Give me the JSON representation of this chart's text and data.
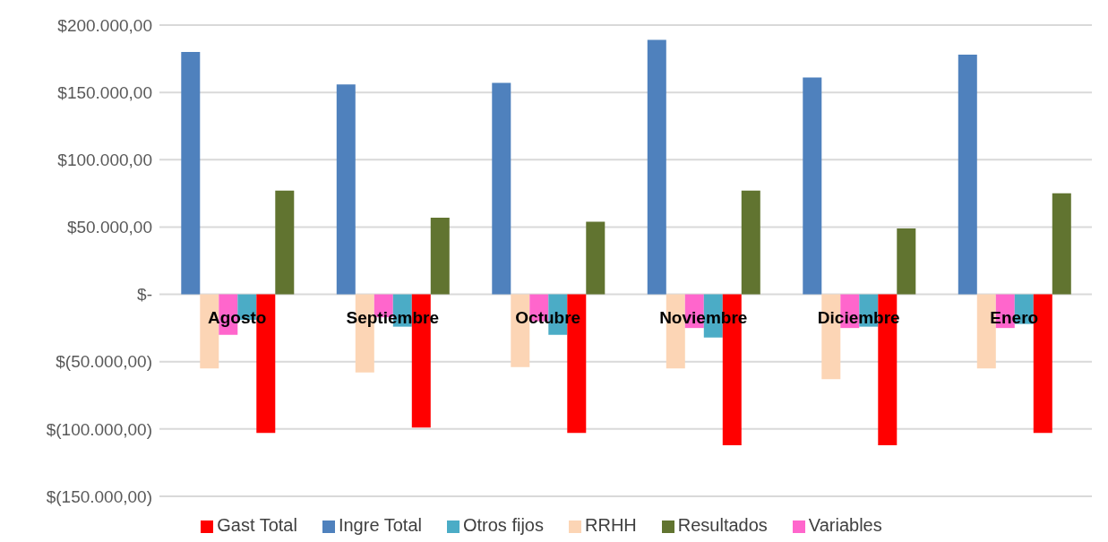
{
  "chart_data": {
    "type": "bar",
    "categories": [
      "Agosto",
      "Septiembre",
      "Octubre",
      "Noviembre",
      "Diciembre",
      "Enero"
    ],
    "series": [
      {
        "name": "Ingre Total",
        "color": "#4f81bd",
        "values": [
          180000,
          156000,
          157000,
          189000,
          161000,
          178000
        ]
      },
      {
        "name": "RRHH",
        "color": "#fcd5b5",
        "values": [
          -55000,
          -58000,
          -54000,
          -55000,
          -63000,
          -55000
        ]
      },
      {
        "name": "Variables",
        "color": "#ff66cc",
        "values": [
          -30000,
          -17000,
          -20000,
          -25000,
          -25000,
          -25000
        ]
      },
      {
        "name": "Otros fijos",
        "color": "#4bacc6",
        "values": [
          -19000,
          -24000,
          -30000,
          -32000,
          -24000,
          -22000
        ]
      },
      {
        "name": "Gast Total",
        "color": "#ff0000",
        "values": [
          -103000,
          -99000,
          -103000,
          -112000,
          -112000,
          -103000
        ]
      },
      {
        "name": "Resultados",
        "color": "#617430",
        "values": [
          77000,
          57000,
          54000,
          77000,
          49000,
          75000
        ]
      }
    ],
    "ylim": [
      -150000,
      200000
    ],
    "yticks": [
      {
        "value": 200000,
        "label": "$200.000,00"
      },
      {
        "value": 150000,
        "label": "$150.000,00"
      },
      {
        "value": 100000,
        "label": "$100.000,00"
      },
      {
        "value": 50000,
        "label": "$50.000,00"
      },
      {
        "value": 0,
        "label": "$-"
      },
      {
        "value": -50000,
        "label": "$(50.000,00)"
      },
      {
        "value": -100000,
        "label": "$(100.000,00)"
      },
      {
        "value": -150000,
        "label": "$(150.000,00)"
      }
    ],
    "grid": "y",
    "legend": "bottom"
  }
}
